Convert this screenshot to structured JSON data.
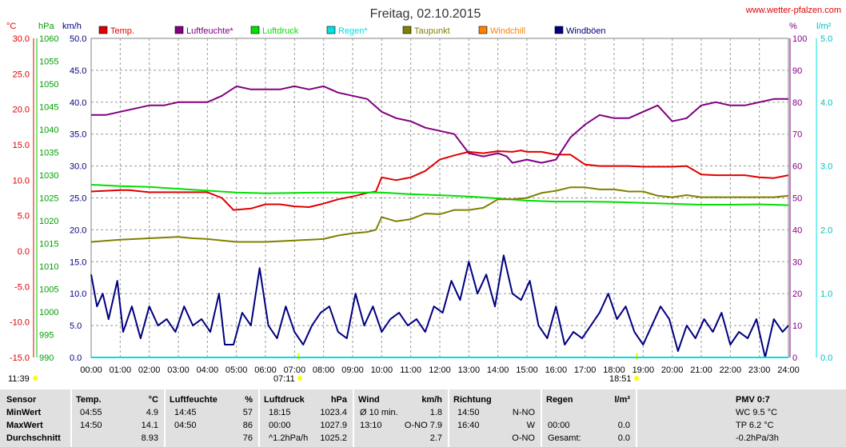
{
  "header": {
    "title": "Freitag, 02.10.2015",
    "site": "www.wetter-pfalzen.com"
  },
  "axes": {
    "units": {
      "temp": "°C",
      "press": "hPa",
      "wind": "km/h",
      "hum": "%",
      "rain": "l/m²"
    },
    "temp_ticks": [
      "30.0",
      "25.0",
      "20.0",
      "15.0",
      "10.0",
      "5.0",
      "0.0",
      "-5.0",
      "-10.0",
      "-15.0"
    ],
    "press_ticks": [
      "1060",
      "1055",
      "1050",
      "1045",
      "1040",
      "1035",
      "1030",
      "1025",
      "1020",
      "1015",
      "1010",
      "1005",
      "1000",
      "995",
      "990"
    ],
    "wind_ticks": [
      "50.0",
      "45.0",
      "40.0",
      "35.0",
      "30.0",
      "25.0",
      "20.0",
      "15.0",
      "10.0",
      "5.0",
      "0.0"
    ],
    "hum_ticks": [
      "100",
      "90",
      "80",
      "70",
      "60",
      "50",
      "40",
      "30",
      "20",
      "10",
      "0"
    ],
    "rain_ticks": [
      "5.0",
      "4.0",
      "3.0",
      "2.0",
      "1.0",
      "0.0"
    ],
    "time_ticks": [
      "00:00",
      "01:00",
      "02:00",
      "03:00",
      "04:00",
      "05:00",
      "06:00",
      "07:00",
      "08:00",
      "09:00",
      "10:00",
      "11:00",
      "12:00",
      "13:00",
      "14:00",
      "15:00",
      "16:00",
      "17:00",
      "18:00",
      "19:00",
      "20:00",
      "21:00",
      "22:00",
      "23:00",
      "24:00"
    ],
    "sun_marks": [
      "11:39",
      "07:11",
      "18:51"
    ]
  },
  "legend": [
    {
      "label": "Temp.",
      "color": "#e00000"
    },
    {
      "label": "Luftfeuchte*",
      "color": "#800080"
    },
    {
      "label": "Luftdruck",
      "color": "#00e000"
    },
    {
      "label": "Regen*",
      "color": "#00e0e0"
    },
    {
      "label": "Taupunkt",
      "color": "#808000"
    },
    {
      "label": "Windchill",
      "color": "#ff8000"
    },
    {
      "label": "Windböen",
      "color": "#000080"
    }
  ],
  "chart_data": {
    "type": "line",
    "x_unit": "hour",
    "xlim": [
      0,
      24
    ],
    "series": [
      {
        "name": "Temp.",
        "axis": "temp",
        "color": "#e00000",
        "x": [
          0,
          1,
          1.3,
          2,
          3,
          4,
          4.5,
          4.9,
          5.5,
          6,
          6.5,
          7,
          7.5,
          8,
          8.5,
          9,
          9.5,
          9.8,
          10,
          10.5,
          11,
          11.5,
          12,
          12.5,
          13,
          13.5,
          14,
          14.5,
          14.8,
          15,
          15.5,
          16,
          16.5,
          17,
          17.5,
          18,
          18.5,
          19,
          19.5,
          20,
          20.5,
          21,
          21.5,
          22,
          22.5,
          23,
          23.5,
          24
        ],
        "y": [
          8.4,
          8.6,
          8.6,
          8.3,
          8.3,
          8.3,
          7.5,
          5.8,
          6.0,
          6.6,
          6.6,
          6.3,
          6.2,
          6.7,
          7.3,
          7.7,
          8.2,
          8.4,
          10.4,
          10.0,
          10.4,
          11.3,
          12.9,
          13.5,
          14.0,
          13.8,
          14.1,
          14.0,
          14.2,
          14.0,
          14.0,
          13.6,
          13.6,
          12.2,
          12.0,
          12.0,
          12.0,
          11.9,
          11.9,
          11.9,
          12.0,
          10.8,
          10.7,
          10.7,
          10.7,
          10.4,
          10.3,
          10.7
        ]
      },
      {
        "name": "Luftfeuchte*",
        "axis": "hum",
        "color": "#800080",
        "x": [
          0,
          0.5,
          1,
          1.5,
          2,
          2.5,
          3,
          3.5,
          4,
          4.5,
          5,
          5.5,
          6,
          6.5,
          7,
          7.5,
          8,
          8.5,
          9,
          9.5,
          10,
          10.5,
          11,
          11.5,
          12,
          12.5,
          13,
          13.5,
          14,
          14.3,
          14.5,
          15,
          15.5,
          16,
          16.5,
          17,
          17.5,
          18,
          18.5,
          19,
          19.5,
          20,
          20.5,
          21,
          21.5,
          22,
          22.5,
          23,
          23.5,
          24
        ],
        "y": [
          76,
          76,
          77,
          78,
          79,
          79,
          80,
          80,
          80,
          82,
          85,
          84,
          84,
          84,
          85,
          84,
          85,
          83,
          82,
          81,
          77,
          75,
          74,
          72,
          71,
          70,
          64,
          63,
          64,
          63,
          61,
          62,
          61,
          62,
          69,
          73,
          76,
          75,
          75,
          77,
          79,
          74,
          75,
          79,
          80,
          79,
          79,
          80,
          81,
          81
        ]
      },
      {
        "name": "Luftdruck",
        "axis": "press",
        "color": "#00e000",
        "x": [
          0,
          1,
          2,
          3,
          4,
          5,
          6,
          7,
          8,
          9,
          10,
          11,
          12,
          13,
          14,
          15,
          16,
          17,
          18,
          19,
          20,
          21,
          22,
          23,
          24
        ],
        "y": [
          1027.9,
          1027.6,
          1027.4,
          1027.0,
          1026.6,
          1026.2,
          1026.0,
          1026.1,
          1026.2,
          1026.2,
          1026.2,
          1025.8,
          1025.6,
          1025.3,
          1024.9,
          1024.4,
          1024.2,
          1024.2,
          1024.1,
          1023.9,
          1023.7,
          1023.5,
          1023.5,
          1023.6,
          1023.4
        ]
      },
      {
        "name": "Taupunkt",
        "axis": "temp",
        "color": "#808000",
        "x": [
          0,
          1,
          2,
          3,
          3.5,
          4,
          4.5,
          5,
          6,
          7,
          8,
          8.5,
          9,
          9.5,
          9.8,
          10,
          10.5,
          11,
          11.5,
          12,
          12.5,
          13,
          13.5,
          14,
          14.5,
          15,
          15.5,
          16,
          16.5,
          17,
          17.5,
          18,
          18.5,
          19,
          19.5,
          20,
          20.5,
          21,
          21.5,
          22,
          22.5,
          23,
          23.5,
          24
        ],
        "y": [
          1.3,
          1.6,
          1.8,
          2.0,
          1.8,
          1.7,
          1.5,
          1.3,
          1.3,
          1.5,
          1.7,
          2.2,
          2.5,
          2.7,
          3.0,
          4.8,
          4.2,
          4.5,
          5.3,
          5.2,
          5.8,
          5.8,
          6.1,
          7.3,
          7.3,
          7.5,
          8.2,
          8.5,
          9.0,
          9.0,
          8.7,
          8.7,
          8.4,
          8.4,
          7.8,
          7.6,
          7.9,
          7.6,
          7.6,
          7.6,
          7.6,
          7.6,
          7.6,
          7.8
        ]
      },
      {
        "name": "Windböen",
        "axis": "wind",
        "color": "#000080",
        "x": [
          0,
          0.2,
          0.4,
          0.6,
          0.9,
          1.1,
          1.4,
          1.7,
          2.0,
          2.3,
          2.6,
          2.9,
          3.2,
          3.5,
          3.8,
          4.1,
          4.4,
          4.6,
          4.9,
          5.2,
          5.5,
          5.8,
          6.1,
          6.4,
          6.7,
          7.0,
          7.3,
          7.6,
          7.9,
          8.2,
          8.5,
          8.8,
          9.1,
          9.4,
          9.7,
          10.0,
          10.3,
          10.6,
          10.9,
          11.2,
          11.5,
          11.8,
          12.1,
          12.4,
          12.7,
          13.0,
          13.3,
          13.6,
          13.9,
          14.2,
          14.5,
          14.8,
          15.1,
          15.4,
          15.7,
          16.0,
          16.3,
          16.6,
          16.9,
          17.2,
          17.5,
          17.8,
          18.1,
          18.4,
          18.7,
          19.0,
          19.3,
          19.6,
          19.9,
          20.2,
          20.5,
          20.8,
          21.1,
          21.4,
          21.7,
          22.0,
          22.3,
          22.6,
          22.9,
          23.2,
          23.5,
          23.8,
          24
        ],
        "y": [
          13,
          8,
          10,
          6,
          12,
          4,
          8,
          3,
          8,
          5,
          6,
          4,
          8,
          5,
          6,
          4,
          10,
          2,
          2,
          7,
          5,
          14,
          5,
          3,
          8,
          4,
          2,
          5,
          7,
          8,
          4,
          3,
          10,
          5,
          8,
          4,
          6,
          7,
          5,
          6,
          4,
          8,
          7,
          12,
          9,
          15,
          10,
          13,
          8,
          16,
          10,
          9,
          12,
          5,
          3,
          8,
          2,
          4,
          3,
          5,
          7,
          10,
          6,
          8,
          4,
          2,
          5,
          8,
          6,
          1,
          5,
          3,
          6,
          4,
          7,
          2,
          4,
          3,
          6,
          0,
          6,
          4,
          5
        ]
      },
      {
        "name": "Regen*",
        "axis": "rain",
        "color": "#00e0e0",
        "x": [
          0,
          24
        ],
        "y": [
          0,
          0
        ]
      }
    ]
  },
  "table": {
    "columns": {
      "sensor": "Sensor",
      "temp": "Temp.",
      "temp_unit": "°C",
      "hum": "Luftfeuchte",
      "hum_unit": "%",
      "press": "Luftdruck",
      "press_unit": "hPa",
      "wind": "Wind",
      "wind_unit": "km/h",
      "dir": "Richtung",
      "rain": "Regen",
      "rain_unit": "l/m²",
      "pmv": "PMV 0:7"
    },
    "rows": [
      {
        "label": "MinWert",
        "temp_time": "04:55",
        "temp_val": "4.9",
        "hum_time": "14:45",
        "hum_val": "57",
        "press_time": "18:15",
        "press_val": "1023.4",
        "wind_time": "Ø 10 min.",
        "wind_val": "1.8",
        "dir_time": "14:50",
        "dir_val": "N-NO",
        "rain_time": "",
        "rain_val": "",
        "pmv": "WC 9.5 °C"
      },
      {
        "label": "MaxWert",
        "temp_time": "14:50",
        "temp_val": "14.1",
        "hum_time": "04:50",
        "hum_val": "86",
        "press_time": "00:00",
        "press_val": "1027.9",
        "wind_time": "13:10",
        "wind_val": "O-NO 7.9",
        "dir_time": "16:40",
        "dir_val": "W",
        "rain_time": "00:00",
        "rain_val": "0.0",
        "pmv": "TP 6.2 °C"
      },
      {
        "label": "Durchschnitt",
        "temp_time": "",
        "temp_val": "8.93",
        "hum_time": "",
        "hum_val": "76",
        "press_time": "^1.2hPa/h",
        "press_val": "1025.2",
        "wind_time": "",
        "wind_val": "2.7",
        "dir_time": "",
        "dir_val": "O-NO",
        "rain_time": "Gesamt:",
        "rain_val": "0.0",
        "pmv": "-0.2hPa/3h"
      }
    ]
  }
}
